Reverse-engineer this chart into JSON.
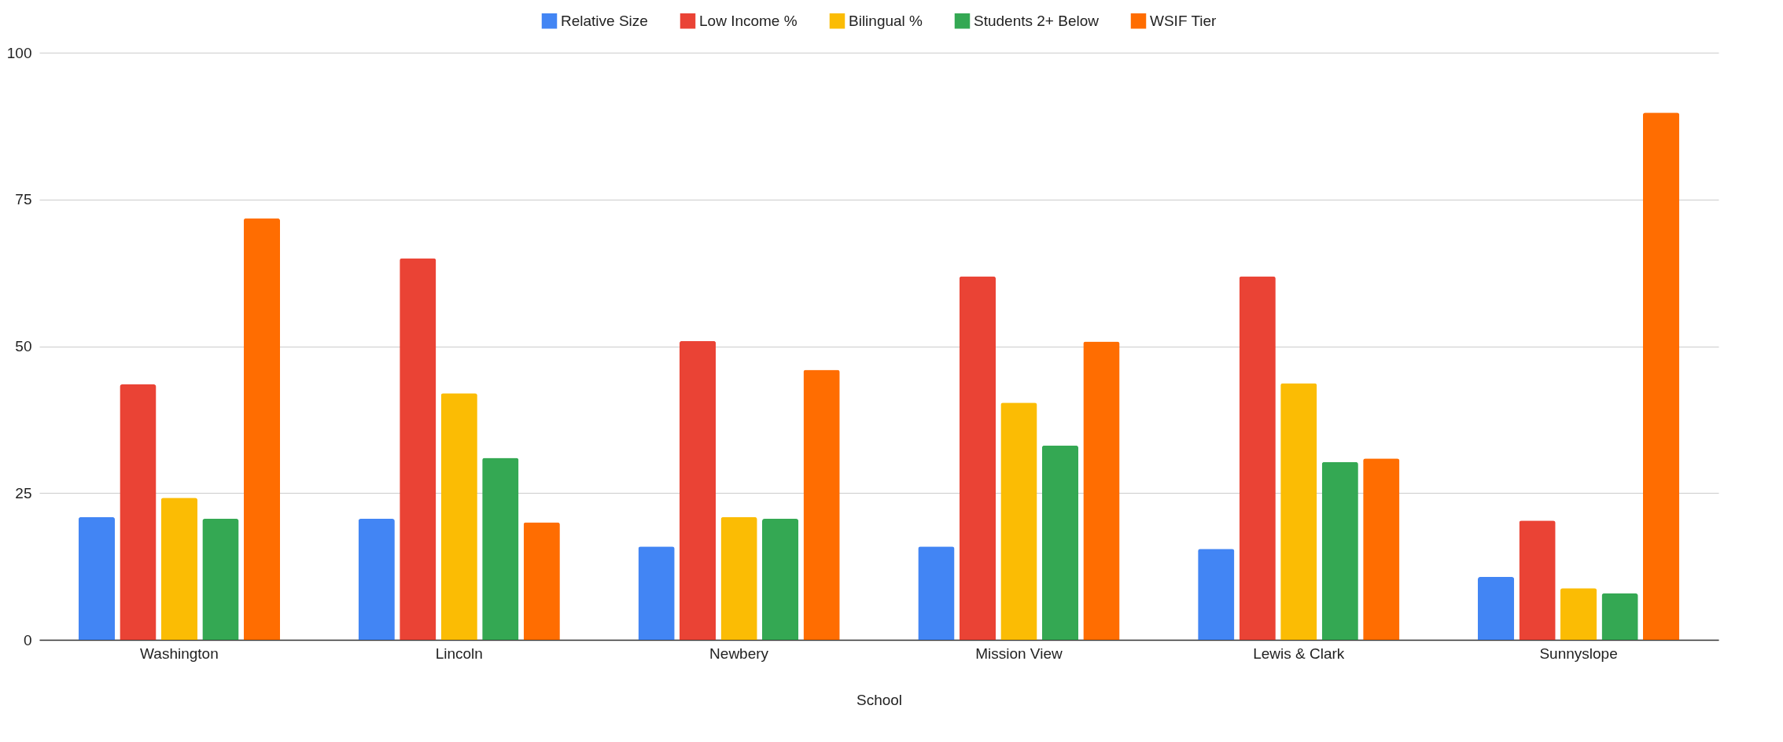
{
  "chart_data": {
    "type": "bar",
    "xlabel": "School",
    "categories": [
      "Washington",
      "Lincoln",
      "Newbery",
      "Mission View",
      "Lewis & Clark",
      "Sunnyslope"
    ],
    "series": [
      {
        "name": "Relative Size",
        "color": "#4285f4",
        "values": [
          20.9,
          20.6,
          15.9,
          15.9,
          15.5,
          10.7
        ]
      },
      {
        "name": "Low Income %",
        "color": "#ea4335",
        "values": [
          43.5,
          65,
          50.9,
          61.9,
          61.9,
          20.3
        ]
      },
      {
        "name": "Bilingual %",
        "color": "#fbbc04",
        "values": [
          24.2,
          42,
          20.9,
          40.4,
          43.7,
          8.8
        ]
      },
      {
        "name": "Students 2+ Below",
        "color": "#34a853",
        "values": [
          20.6,
          31,
          20.6,
          33.1,
          30.3,
          7.9
        ]
      },
      {
        "name": "WSIF Tier",
        "color": "#ff6d01",
        "values": [
          71.8,
          20,
          46,
          50.8,
          30.9,
          89.8
        ]
      }
    ],
    "ylim": [
      0,
      100
    ],
    "yticks": [
      0,
      25,
      50,
      75,
      100
    ],
    "grid": "y",
    "legend": "top"
  }
}
